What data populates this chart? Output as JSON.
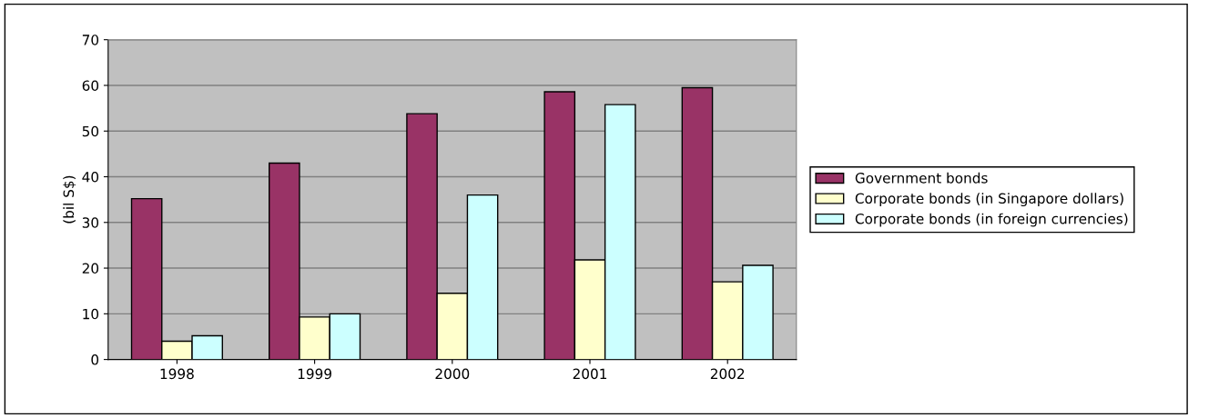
{
  "chart_data": {
    "type": "bar",
    "ylabel": "(bil S$)",
    "categories": [
      "1998",
      "1999",
      "2000",
      "2001",
      "2002"
    ],
    "series": [
      {
        "name": "Government bonds",
        "color": "#993366",
        "values": [
          35.2,
          43,
          53.8,
          58.6,
          59.5
        ]
      },
      {
        "name": "Corporate bonds (in Singapore dollars)",
        "color": "#ffffcc",
        "values": [
          4,
          9.3,
          14.5,
          21.8,
          17
        ]
      },
      {
        "name": "Corporate bonds (in foreign currencies)",
        "color": "#ccffff",
        "values": [
          5.2,
          10,
          36,
          55.8,
          20.6
        ]
      }
    ],
    "ylim": [
      0,
      70
    ],
    "yticks": [
      0,
      10,
      20,
      30,
      40,
      50,
      60,
      70
    ],
    "grid": "y",
    "legend": "right"
  }
}
